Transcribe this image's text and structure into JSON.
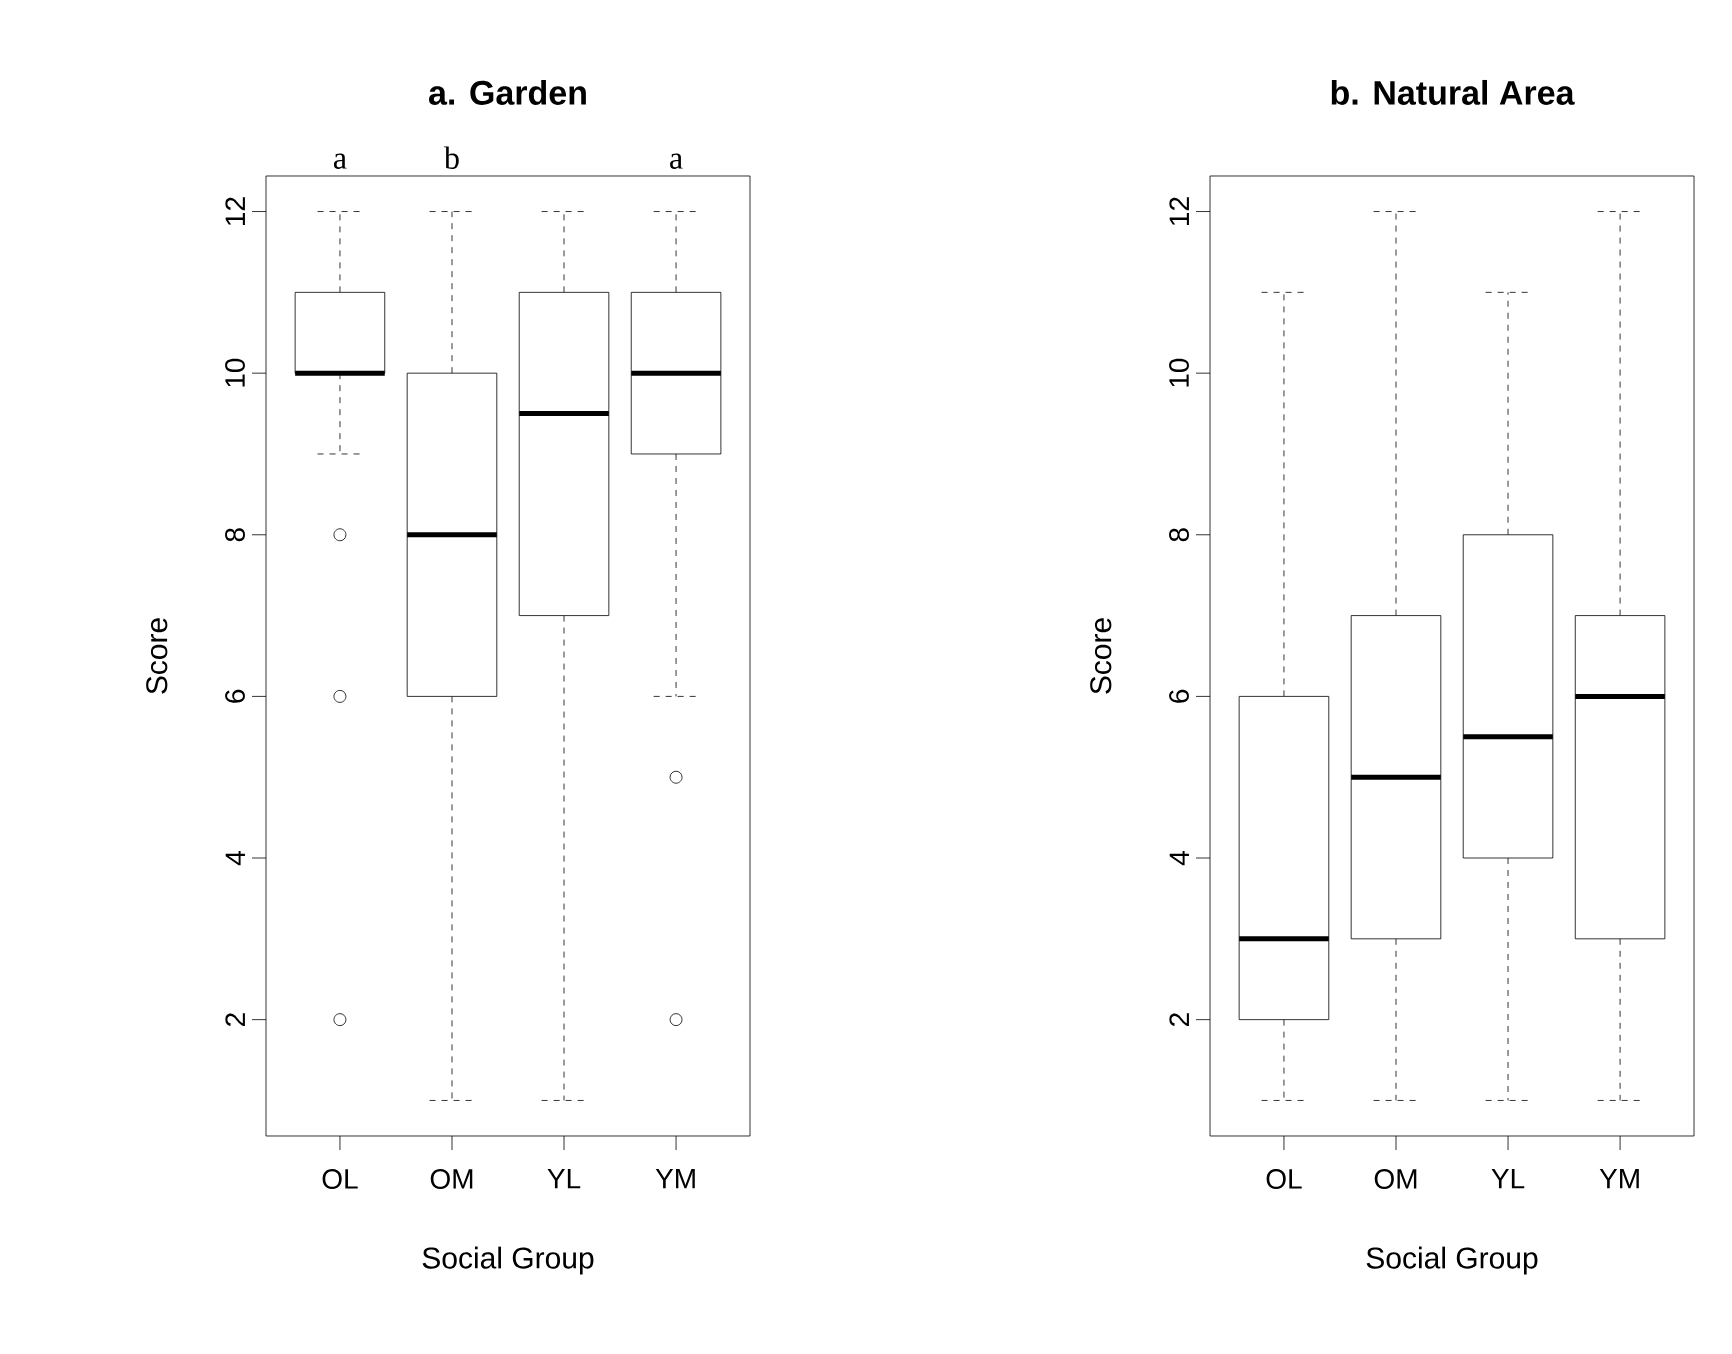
{
  "chart_data": [
    {
      "type": "box",
      "title": "a. Garden",
      "xlabel": "Social Group",
      "ylabel": "Score",
      "categories": [
        "OL",
        "OM",
        "YL",
        "YM"
      ],
      "boxes": [
        {
          "low": 9,
          "q1": 10,
          "median": 10,
          "q3": 11,
          "high": 12,
          "outliers": [
            8,
            6,
            2
          ]
        },
        {
          "low": 1,
          "q1": 6,
          "median": 8,
          "q3": 10,
          "high": 12
        },
        {
          "low": 1,
          "q1": 7,
          "median": 9.5,
          "q3": 11,
          "high": 12
        },
        {
          "low": 6,
          "q1": 9,
          "median": 10,
          "q3": 11,
          "high": 12,
          "outliers": [
            5,
            2
          ]
        }
      ],
      "ylim": [
        0.56,
        12.44
      ],
      "yticks": [
        2,
        4,
        6,
        8,
        10,
        12
      ],
      "annotations": [
        "a",
        "b",
        "a"
      ]
    },
    {
      "type": "box",
      "title": "b. Natural Area",
      "xlabel": "Social Group",
      "ylabel": "Score",
      "categories": [
        "OL",
        "OM",
        "YL",
        "YM"
      ],
      "boxes": [
        {
          "low": 1,
          "q1": 2,
          "median": 3,
          "q3": 6,
          "high": 11
        },
        {
          "low": 1,
          "q1": 3,
          "median": 5,
          "q3": 7,
          "high": 12
        },
        {
          "low": 1,
          "q1": 4,
          "median": 5.5,
          "q3": 8,
          "high": 11
        },
        {
          "low": 1,
          "q1": 3,
          "median": 6,
          "q3": 7,
          "high": 12
        }
      ],
      "ylim": [
        0.56,
        12.44
      ],
      "yticks": [
        2,
        4,
        6,
        8,
        10,
        12
      ]
    }
  ]
}
